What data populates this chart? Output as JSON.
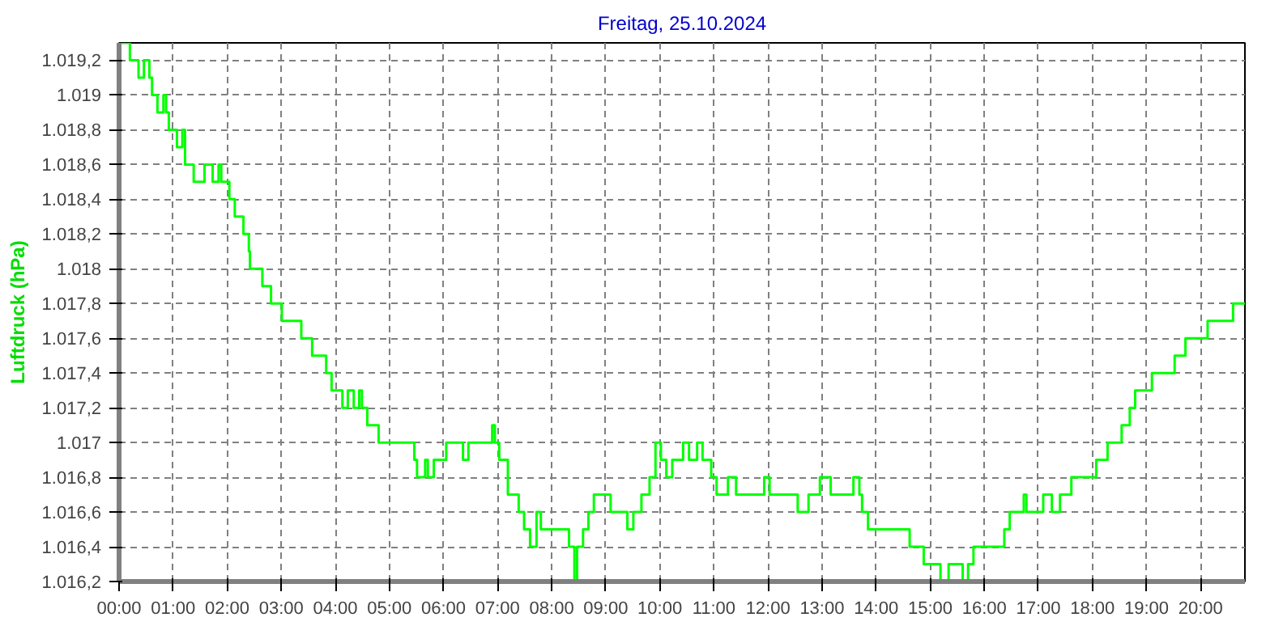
{
  "chart_data": {
    "type": "step",
    "title": "Freitag, 25.10.2024",
    "ylabel": "Luftdruck (hPa)",
    "xlim": [
      0,
      20.82
    ],
    "ylim": [
      1016.2,
      1019.3
    ],
    "xticks": [
      {
        "value": 0,
        "label": "00:00"
      },
      {
        "value": 1,
        "label": "01:00"
      },
      {
        "value": 2,
        "label": "02:00"
      },
      {
        "value": 3,
        "label": "03:00"
      },
      {
        "value": 4,
        "label": "04:00"
      },
      {
        "value": 5,
        "label": "05:00"
      },
      {
        "value": 6,
        "label": "06:00"
      },
      {
        "value": 7,
        "label": "07:00"
      },
      {
        "value": 8,
        "label": "08:00"
      },
      {
        "value": 9,
        "label": "09:00"
      },
      {
        "value": 10,
        "label": "10:00"
      },
      {
        "value": 11,
        "label": "11:00"
      },
      {
        "value": 12,
        "label": "12:00"
      },
      {
        "value": 13,
        "label": "13:00"
      },
      {
        "value": 14,
        "label": "14:00"
      },
      {
        "value": 15,
        "label": "15:00"
      },
      {
        "value": 16,
        "label": "16:00"
      },
      {
        "value": 17,
        "label": "17:00"
      },
      {
        "value": 18,
        "label": "18:00"
      },
      {
        "value": 19,
        "label": "19:00"
      },
      {
        "value": 20,
        "label": "20:00"
      }
    ],
    "yticks": [
      {
        "value": 1016.2,
        "label": "1.016,2"
      },
      {
        "value": 1016.4,
        "label": "1.016,4"
      },
      {
        "value": 1016.6,
        "label": "1.016,6"
      },
      {
        "value": 1016.8,
        "label": "1.016,8"
      },
      {
        "value": 1017,
        "label": "1.017"
      },
      {
        "value": 1017.2,
        "label": "1.017,2"
      },
      {
        "value": 1017.4,
        "label": "1.017,4"
      },
      {
        "value": 1017.6,
        "label": "1.017,6"
      },
      {
        "value": 1017.8,
        "label": "1.017,8"
      },
      {
        "value": 1018,
        "label": "1.018"
      },
      {
        "value": 1018.2,
        "label": "1.018,2"
      },
      {
        "value": 1018.4,
        "label": "1.018,4"
      },
      {
        "value": 1018.6,
        "label": "1.018,6"
      },
      {
        "value": 1018.8,
        "label": "1.018,8"
      },
      {
        "value": 1019,
        "label": "1.019"
      },
      {
        "value": 1019.2,
        "label": "1.019,2"
      }
    ],
    "grid": true,
    "line_style": "solid",
    "series": [
      {
        "color": "#00ff00",
        "x": [
          0,
          0.2,
          0.36,
          0.46,
          0.56,
          0.61,
          0.71,
          0.82,
          0.87,
          0.92,
          1.07,
          1.17,
          1.22,
          1.38,
          1.58,
          1.73,
          1.84,
          1.89,
          2.04,
          2.14,
          2.3,
          2.4,
          2.42,
          2.65,
          2.81,
          3.01,
          3.37,
          3.57,
          3.83,
          3.93,
          4.13,
          4.23,
          4.34,
          4.44,
          4.49,
          4.59,
          4.8,
          5.46,
          5.51,
          5.66,
          5.71,
          5.82,
          6.05,
          6.36,
          6.46,
          6.9,
          6.95,
          7.03,
          7.19,
          7.39,
          7.49,
          7.6,
          7.72,
          7.8,
          8.32,
          8.42,
          8.47,
          8.58,
          8.68,
          8.78,
          9.09,
          9.4,
          9.51,
          9.66,
          9.81,
          9.92,
          10.02,
          10.12,
          10.23,
          10.43,
          10.54,
          10.69,
          10.79,
          10.95,
          11.05,
          11.26,
          11.41,
          11.93,
          12.03,
          12.55,
          12.75,
          12.96,
          13.16,
          13.58,
          13.69,
          13.74,
          13.85,
          14.62,
          14.88,
          15.19,
          15.34,
          15.6,
          15.7,
          15.8,
          16.37,
          16.47,
          16.73,
          16.78,
          17.09,
          17.25,
          17.4,
          17.61,
          18.07,
          18.28,
          18.54,
          18.69,
          18.79,
          19.1,
          19.52,
          19.72,
          20.13,
          20.6,
          20.82
        ],
        "values": [
          1019.3,
          1019.2,
          1019.1,
          1019.2,
          1019.1,
          1019.0,
          1018.9,
          1019.0,
          1018.9,
          1018.8,
          1018.7,
          1018.8,
          1018.6,
          1018.5,
          1018.6,
          1018.5,
          1018.6,
          1018.5,
          1018.4,
          1018.3,
          1018.2,
          1018.1,
          1018.0,
          1017.9,
          1017.8,
          1017.7,
          1017.6,
          1017.5,
          1017.4,
          1017.3,
          1017.2,
          1017.3,
          1017.2,
          1017.3,
          1017.2,
          1017.1,
          1017.0,
          1016.9,
          1016.8,
          1016.9,
          1016.8,
          1016.9,
          1017.0,
          1016.9,
          1017.0,
          1017.1,
          1017.0,
          1016.9,
          1016.7,
          1016.6,
          1016.5,
          1016.4,
          1016.6,
          1016.5,
          1016.4,
          1016.2,
          1016.4,
          1016.5,
          1016.6,
          1016.7,
          1016.6,
          1016.5,
          1016.6,
          1016.7,
          1016.8,
          1017.0,
          1016.9,
          1016.8,
          1016.9,
          1017.0,
          1016.9,
          1017.0,
          1016.9,
          1016.8,
          1016.7,
          1016.8,
          1016.7,
          1016.8,
          1016.7,
          1016.6,
          1016.7,
          1016.8,
          1016.7,
          1016.8,
          1016.7,
          1016.6,
          1016.5,
          1016.4,
          1016.3,
          1016.2,
          1016.3,
          1016.2,
          1016.3,
          1016.4,
          1016.5,
          1016.6,
          1016.7,
          1016.6,
          1016.7,
          1016.6,
          1016.7,
          1016.8,
          1016.9,
          1017.0,
          1017.1,
          1017.2,
          1017.3,
          1017.4,
          1017.5,
          1017.6,
          1017.7,
          1017.8,
          1017.8
        ]
      }
    ]
  }
}
